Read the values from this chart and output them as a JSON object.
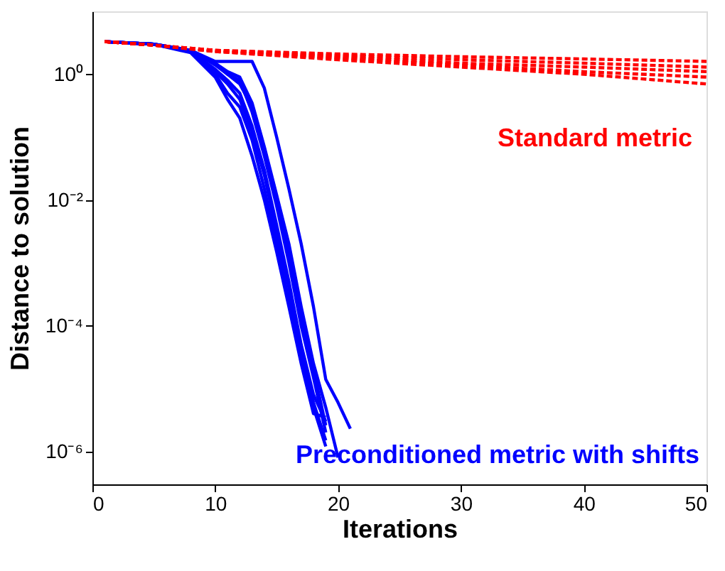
{
  "chart_data": {
    "type": "line",
    "xlabel": "Iterations",
    "ylabel": "Distance to solution",
    "log": "y",
    "xlim": [
      0,
      50
    ],
    "xticks": [
      0,
      10,
      20,
      30,
      40,
      50
    ],
    "ylim": [
      3e-07,
      10
    ],
    "yticks": [
      {
        "value": 1,
        "label": "10⁰"
      },
      {
        "value": 0.01,
        "label": "10⁻²"
      },
      {
        "value": 0.0001,
        "label": "10⁻⁴"
      },
      {
        "value": 1e-06,
        "label": "10⁻⁶"
      }
    ],
    "grid": false,
    "legend": false,
    "series": [
      {
        "name": "Standard metric",
        "color": "#ff0000",
        "line_style": "dashed",
        "x": [
          1,
          5,
          10,
          20,
          30,
          40,
          50
        ],
        "values": [
          3.3,
          2.9,
          2.4,
          2.1,
          1.9,
          1.75,
          1.6
        ]
      },
      {
        "color": "#ff0000",
        "line_style": "dashed",
        "x": [
          1,
          5,
          10,
          20,
          30,
          40,
          50
        ],
        "values": [
          3.3,
          2.9,
          2.4,
          2.0,
          1.7,
          1.5,
          1.3
        ]
      },
      {
        "color": "#ff0000",
        "line_style": "dashed",
        "x": [
          1,
          5,
          10,
          20,
          30,
          40,
          50
        ],
        "values": [
          3.3,
          2.9,
          2.4,
          1.9,
          1.5,
          1.3,
          1.1
        ]
      },
      {
        "color": "#ff0000",
        "line_style": "dashed",
        "x": [
          1,
          5,
          10,
          20,
          30,
          40,
          50
        ],
        "values": [
          3.3,
          2.9,
          2.3,
          1.8,
          1.4,
          1.1,
          0.9
        ]
      },
      {
        "color": "#ff0000",
        "line_style": "dashed",
        "x": [
          1,
          5,
          10,
          20,
          30,
          40,
          50
        ],
        "values": [
          3.3,
          2.9,
          2.3,
          1.7,
          1.3,
          1.0,
          0.7
        ]
      },
      {
        "name": "Preconditioned metric with shifts",
        "color": "#0000ff",
        "line_style": "solid",
        "x": [
          1,
          5,
          8,
          10,
          11,
          12,
          13,
          14,
          15,
          16,
          17,
          18,
          19
        ],
        "values": [
          3.3,
          3.0,
          2.4,
          1.5,
          1.0,
          0.8,
          0.25,
          0.05,
          0.008,
          0.001,
          0.0001,
          1.5e-05,
          2e-06
        ]
      },
      {
        "color": "#0000ff",
        "line_style": "solid",
        "x": [
          1,
          5,
          8,
          10,
          11,
          12,
          13,
          14,
          15,
          16,
          17,
          18,
          19
        ],
        "values": [
          3.3,
          3.0,
          2.3,
          1.0,
          0.5,
          0.3,
          0.09,
          0.015,
          0.002,
          0.00025,
          3e-05,
          5e-06,
          1.2e-06
        ]
      },
      {
        "color": "#0000ff",
        "line_style": "solid",
        "x": [
          1,
          5,
          8,
          10,
          11,
          12,
          13,
          14,
          15,
          16,
          17,
          18,
          19
        ],
        "values": [
          3.3,
          3.0,
          2.3,
          1.2,
          0.8,
          0.5,
          0.15,
          0.03,
          0.004,
          0.0005,
          5e-05,
          8e-06,
          3e-06
        ]
      },
      {
        "color": "#0000ff",
        "line_style": "solid",
        "x": [
          1,
          5,
          8,
          10,
          11,
          12,
          13,
          14,
          15,
          16,
          17,
          18,
          19
        ],
        "values": [
          3.3,
          3.0,
          2.4,
          1.4,
          1.0,
          0.7,
          0.3,
          0.06,
          0.01,
          0.0015,
          0.00015,
          2e-05,
          2.6e-06
        ]
      },
      {
        "color": "#0000ff",
        "line_style": "solid",
        "x": [
          1,
          5,
          8,
          10,
          11,
          12,
          13,
          14,
          15,
          16,
          17,
          18,
          19
        ],
        "values": [
          3.3,
          3.0,
          2.3,
          1.1,
          0.7,
          0.4,
          0.12,
          0.025,
          0.003,
          0.0004,
          4e-05,
          6e-06,
          1.5e-06
        ]
      },
      {
        "color": "#0000ff",
        "line_style": "solid",
        "x": [
          1,
          5,
          8,
          10,
          11,
          12,
          13,
          14,
          15,
          16,
          17,
          18,
          19,
          20
        ],
        "values": [
          3.3,
          3.0,
          2.4,
          1.5,
          1.1,
          0.9,
          0.35,
          0.07,
          0.012,
          0.002,
          0.0002,
          2.5e-05,
          5e-06,
          8e-07
        ]
      },
      {
        "color": "#0000ff",
        "line_style": "solid",
        "x": [
          1,
          5,
          8,
          10,
          11,
          12,
          13,
          14,
          15,
          16,
          17,
          18,
          19
        ],
        "values": [
          3.3,
          3.0,
          2.2,
          0.9,
          0.4,
          0.2,
          0.05,
          0.01,
          0.0015,
          0.0002,
          2.5e-05,
          4e-06,
          3.5e-06
        ]
      },
      {
        "color": "#0000ff",
        "line_style": "solid",
        "x": [
          1,
          5,
          8,
          10,
          11,
          12,
          13,
          14,
          15,
          16,
          17,
          18,
          19,
          20,
          21
        ],
        "values": [
          3.3,
          3.0,
          2.4,
          1.6,
          1.6,
          1.6,
          1.6,
          0.6,
          0.1,
          0.015,
          0.002,
          0.0002,
          1.4e-05,
          6e-06,
          2.3e-06
        ]
      }
    ]
  }
}
